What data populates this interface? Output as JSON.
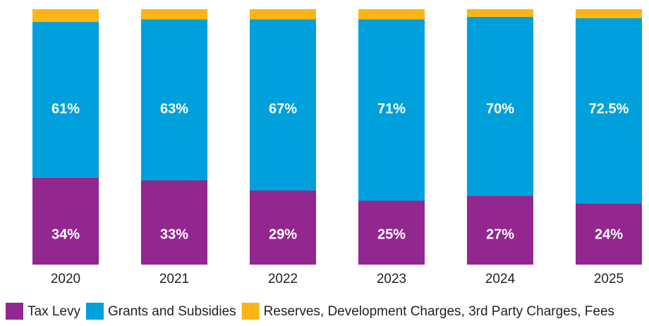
{
  "chart_data": {
    "type": "stacked_bar",
    "categories": [
      "2020",
      "2021",
      "2022",
      "2023",
      "2024",
      "2025"
    ],
    "series": [
      {
        "name": "Tax Levy",
        "color": "#92278f",
        "values": [
          34,
          33,
          29,
          25,
          27,
          24
        ],
        "value_labels": [
          "34%",
          "33%",
          "29%",
          "25%",
          "27%",
          "24%"
        ]
      },
      {
        "name": "Grants and Subsidies",
        "color": "#00a0dc",
        "values": [
          61,
          63,
          67,
          71,
          70,
          72.5
        ],
        "value_labels": [
          "61%",
          "63%",
          "67%",
          "71%",
          "70%",
          "72.5%"
        ]
      },
      {
        "name": "Reserves, Development Charges, 3rd Party Charges, Fees",
        "color": "#fdb515",
        "values": [
          5,
          4,
          4,
          4,
          3,
          3.5
        ]
      }
    ],
    "ylim": [
      0,
      100
    ],
    "legend": "bottom"
  }
}
